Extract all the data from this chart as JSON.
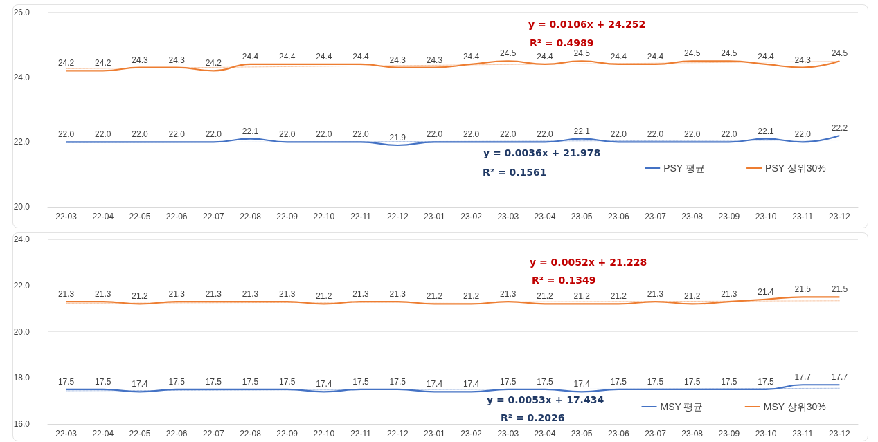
{
  "chart_data": [
    {
      "type": "line",
      "categories": [
        "22-03",
        "22-04",
        "22-05",
        "22-06",
        "22-07",
        "22-08",
        "22-09",
        "22-10",
        "22-11",
        "22-12",
        "23-01",
        "23-02",
        "23-03",
        "23-04",
        "23-05",
        "23-06",
        "23-07",
        "23-08",
        "23-09",
        "23-10",
        "23-11",
        "23-12"
      ],
      "ylim": [
        20,
        26
      ],
      "yticks": [
        {
          "value": 20,
          "label": "20.0"
        },
        {
          "value": 22,
          "label": "22.0"
        },
        {
          "value": 24,
          "label": "24.0"
        },
        {
          "value": 26,
          "label": "26.0"
        }
      ],
      "grid": "y",
      "legend": "bottom right",
      "series": [
        {
          "name": "PSY 평균",
          "color": "#4472c4",
          "values": [
            22.0,
            22.0,
            22.0,
            22.0,
            22.0,
            22.1,
            22.0,
            22.0,
            22.0,
            21.9,
            22.0,
            22.0,
            22.0,
            22.0,
            22.1,
            22.0,
            22.0,
            22.0,
            22.0,
            22.1,
            22.0,
            22.2
          ],
          "value_labels": [
            "22.0",
            "22.0",
            "22.0",
            "22.0",
            "22.0",
            "22.1",
            "22.0",
            "22.0",
            "22.0",
            "21.9",
            "22.0",
            "22.0",
            "22.0",
            "22.0",
            "22.1",
            "22.0",
            "22.0",
            "22.0",
            "22.0",
            "22.1",
            "22.0",
            "22.2"
          ]
        },
        {
          "name": "PSY 상위30%",
          "color": "#ed7d31",
          "values": [
            24.2,
            24.2,
            24.3,
            24.3,
            24.2,
            24.4,
            24.4,
            24.4,
            24.4,
            24.3,
            24.3,
            24.4,
            24.5,
            24.4,
            24.5,
            24.4,
            24.4,
            24.5,
            24.5,
            24.4,
            24.3,
            24.5
          ],
          "value_labels": [
            "24.2",
            "24.2",
            "24.3",
            "24.3",
            "24.2",
            "24.4",
            "24.4",
            "24.4",
            "24.4",
            "24.3",
            "24.3",
            "24.4",
            "24.5",
            "24.4",
            "24.5",
            "24.4",
            "24.4",
            "24.5",
            "24.5",
            "24.4",
            "24.3",
            "24.5"
          ]
        },
        {
          "color": "#4472c4",
          "line_style": "dotted",
          "x": [
            "22-03",
            "23-12"
          ],
          "values": [
            21.98,
            22.06
          ]
        },
        {
          "color": "#ed7d31",
          "line_style": "dotted",
          "x": [
            "22-03",
            "23-12"
          ],
          "values": [
            24.26,
            24.49
          ]
        }
      ],
      "annotations": [
        "y = 0.0106x + 24.252",
        "R² = 0.4989",
        "y = 0.0036x + 21.978",
        "R² = 0.1561"
      ]
    },
    {
      "type": "line",
      "categories": [
        "22-03",
        "22-04",
        "22-05",
        "22-06",
        "22-07",
        "22-08",
        "22-09",
        "22-10",
        "22-11",
        "22-12",
        "23-01",
        "23-02",
        "23-03",
        "23-04",
        "23-05",
        "23-06",
        "23-07",
        "23-08",
        "23-09",
        "23-10",
        "23-11",
        "23-12"
      ],
      "ylim": [
        16,
        24
      ],
      "yticks": [
        {
          "value": 16,
          "label": "16.0"
        },
        {
          "value": 18,
          "label": "18.0"
        },
        {
          "value": 20,
          "label": "20.0"
        },
        {
          "value": 22,
          "label": "22.0"
        },
        {
          "value": 24,
          "label": "24.0"
        }
      ],
      "grid": "y",
      "legend": "bottom right",
      "series": [
        {
          "name": "MSY 평균",
          "color": "#4472c4",
          "values": [
            17.5,
            17.5,
            17.4,
            17.5,
            17.5,
            17.5,
            17.5,
            17.4,
            17.5,
            17.5,
            17.4,
            17.4,
            17.5,
            17.5,
            17.4,
            17.5,
            17.5,
            17.5,
            17.5,
            17.5,
            17.7,
            17.7
          ],
          "value_labels": [
            "17.5",
            "17.5",
            "17.4",
            "17.5",
            "17.5",
            "17.5",
            "17.5",
            "17.4",
            "17.5",
            "17.5",
            "17.4",
            "17.4",
            "17.5",
            "17.5",
            "17.4",
            "17.5",
            "17.5",
            "17.5",
            "17.5",
            "17.5",
            "17.7",
            "17.7"
          ]
        },
        {
          "name": "MSY 상위30%",
          "color": "#ed7d31",
          "values": [
            21.3,
            21.3,
            21.2,
            21.3,
            21.3,
            21.3,
            21.3,
            21.2,
            21.3,
            21.3,
            21.2,
            21.2,
            21.3,
            21.2,
            21.2,
            21.2,
            21.3,
            21.2,
            21.3,
            21.4,
            21.5,
            21.5
          ],
          "value_labels": [
            "21.3",
            "21.3",
            "21.2",
            "21.3",
            "21.3",
            "21.3",
            "21.3",
            "21.2",
            "21.3",
            "21.3",
            "21.2",
            "21.2",
            "21.3",
            "21.2",
            "21.2",
            "21.2",
            "21.3",
            "21.2",
            "21.3",
            "21.4",
            "21.5",
            "21.5"
          ]
        },
        {
          "color": "#4472c4",
          "line_style": "dotted",
          "x": [
            "22-03",
            "23-12"
          ],
          "values": [
            17.44,
            17.55
          ]
        },
        {
          "color": "#ed7d31",
          "line_style": "dotted",
          "x": [
            "22-03",
            "23-12"
          ],
          "values": [
            21.23,
            21.34
          ]
        }
      ],
      "annotations": [
        "y = 0.0052x + 21.228",
        "R² = 0.1349",
        "y = 0.0053x + 17.434",
        "R² = 0.2026"
      ]
    }
  ]
}
